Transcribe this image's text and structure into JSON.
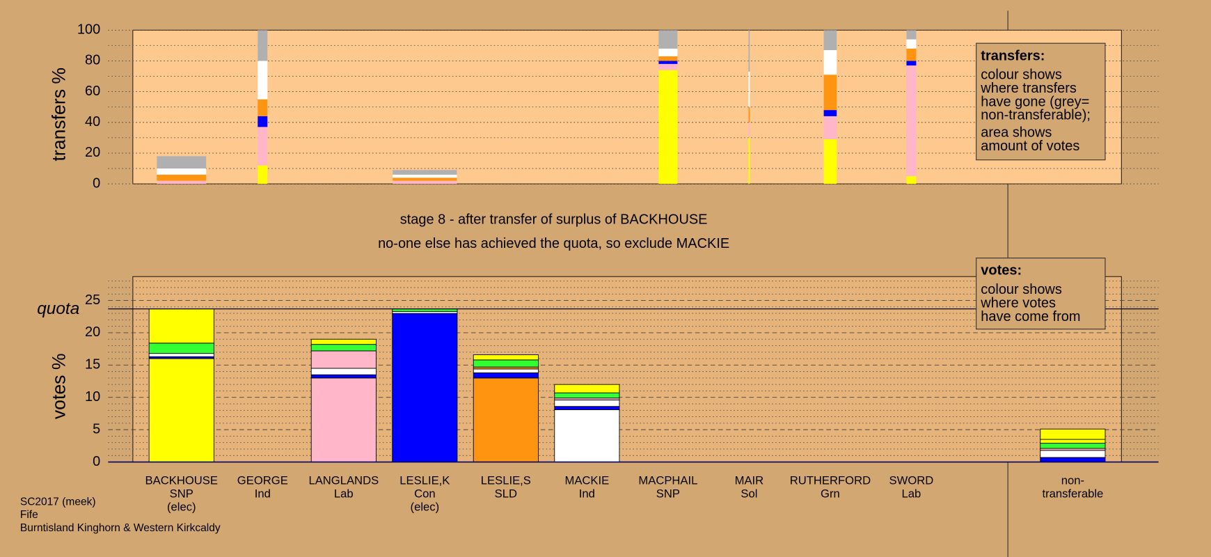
{
  "title_lines": [
    "stage 8 - after transfer of surplus of BACKHOUSE",
    "no-one else has achieved the quota, so exclude MACKIE"
  ],
  "footer": [
    "SC2017 (meek)",
    "Fife",
    "Burntisland Kinghorn & Western Kirkcaldy"
  ],
  "chart_data": [
    {
      "type": "stacked-bar",
      "ylabel": "transfers %",
      "ylim": [
        0,
        100
      ],
      "yticks": [
        0,
        20,
        40,
        60,
        80,
        100
      ],
      "minor_yticks": [
        10,
        30,
        50,
        70,
        90
      ],
      "grid": "dotted",
      "background": "#fec98e",
      "note": {
        "title": "transfers:",
        "paragraphs": [
          [
            "colour shows",
            "where transfers",
            "have gone (grey=",
            "non-transferable);"
          ],
          [
            "area shows",
            "amount of votes"
          ]
        ]
      },
      "bars": [
        {
          "width": 0.76,
          "segments": [
            {
              "color": "#ffb6c8",
              "value": 2
            },
            {
              "color": "#ff9410",
              "value": 4
            },
            {
              "color": "#ffffff",
              "value": 4
            },
            {
              "color": "#b0b0b0",
              "value": 8
            }
          ]
        },
        {
          "width": 0.15,
          "segments": [
            {
              "color": "#ffff00",
              "value": 12
            },
            {
              "color": "#ffb6c8",
              "value": 25
            },
            {
              "color": "#0000ff",
              "value": 7
            },
            {
              "color": "#ff9410",
              "value": 11
            },
            {
              "color": "#ffffff",
              "value": 25
            },
            {
              "color": "#b0b0b0",
              "value": 20
            }
          ]
        },
        null,
        {
          "width": 0.99,
          "segments": [
            {
              "color": "#ffb6c8",
              "value": 2
            },
            {
              "color": "#ff9410",
              "value": 2
            },
            {
              "color": "#ffffff",
              "value": 2
            },
            {
              "color": "#b0b0b0",
              "value": 3
            }
          ]
        },
        null,
        null,
        {
          "width": 0.29,
          "segments": [
            {
              "color": "#ffff00",
              "value": 74
            },
            {
              "color": "#ffb6c8",
              "value": 4
            },
            {
              "color": "#0000ff",
              "value": 2
            },
            {
              "color": "#ff9410",
              "value": 3
            },
            {
              "color": "#ffffff",
              "value": 5
            },
            {
              "color": "#b0b0b0",
              "value": 12
            }
          ]
        },
        {
          "width": 0.02,
          "segments": [
            {
              "color": "#ffff00",
              "value": 30
            },
            {
              "color": "#ffb6c8",
              "value": 10
            },
            {
              "color": "#ff9410",
              "value": 10
            },
            {
              "color": "#ffffff",
              "value": 23
            },
            {
              "color": "#b0b0b0",
              "value": 27
            }
          ]
        },
        {
          "width": 0.2,
          "segments": [
            {
              "color": "#ffff00",
              "value": 29
            },
            {
              "color": "#ffb6c8",
              "value": 15
            },
            {
              "color": "#0000ff",
              "value": 4
            },
            {
              "color": "#ff9410",
              "value": 23
            },
            {
              "color": "#ffffff",
              "value": 16
            },
            {
              "color": "#b0b0b0",
              "value": 13
            }
          ]
        },
        {
          "width": 0.15,
          "segments": [
            {
              "color": "#ffff00",
              "value": 5
            },
            {
              "color": "#ffb6c8",
              "value": 72
            },
            {
              "color": "#0000ff",
              "value": 3
            },
            {
              "color": "#ff9410",
              "value": 8
            },
            {
              "color": "#ffffff",
              "value": 6
            },
            {
              "color": "#b0b0b0",
              "value": 6
            }
          ]
        },
        null
      ]
    },
    {
      "type": "stacked-bar",
      "ylabel": "votes %",
      "ylim": [
        0,
        28.7
      ],
      "yticks": [
        0,
        5,
        10,
        15,
        20,
        25
      ],
      "minor_yticks": [
        1,
        2,
        3,
        4,
        6,
        7,
        8,
        9,
        11,
        12,
        13,
        14,
        16,
        17,
        18,
        19,
        21,
        22,
        23,
        24,
        26,
        27,
        28
      ],
      "grid": "dashed",
      "background": "#e6b47b",
      "quota": {
        "label": "quota",
        "value": 23.7
      },
      "note": {
        "title": "votes:",
        "paragraphs": [
          [
            "colour shows",
            "where votes",
            "have come from"
          ]
        ]
      },
      "categories": [
        [
          "BACKHOUSE",
          "SNP",
          "(elec)"
        ],
        [
          "GEORGE",
          "Ind"
        ],
        [
          "LANGLANDS",
          "Lab"
        ],
        [
          "LESLIE,K",
          "Con",
          "(elec)"
        ],
        [
          "LESLIE,S",
          "SLD"
        ],
        [
          "MACKIE",
          "Ind"
        ],
        [
          "MACPHAIL",
          "SNP"
        ],
        [
          "MAIR",
          "Sol"
        ],
        [
          "RUTHERFORD",
          "Grn"
        ],
        [
          "SWORD",
          "Lab"
        ],
        [
          "non-",
          "transferable"
        ]
      ],
      "bars": [
        {
          "segments": [
            {
              "color": "#ffff00",
              "value": 16
            },
            {
              "color": "#0000ff",
              "value": 0.3
            },
            {
              "color": "#ffffff",
              "value": 0.5
            },
            {
              "color": "#33ff33",
              "value": 1.6
            },
            {
              "color": "#ffff00",
              "value": 5.3
            }
          ]
        },
        {
          "segments": [
            {
              "color": "#0000ff",
              "value": 0
            }
          ]
        },
        {
          "segments": [
            {
              "color": "#ffb6c8",
              "value": 13
            },
            {
              "color": "#0000ff",
              "value": 0.5
            },
            {
              "color": "#ffffff",
              "value": 1
            },
            {
              "color": "#ffb6c8",
              "value": 2.7
            },
            {
              "color": "#33ff33",
              "value": 1
            },
            {
              "color": "#ffff00",
              "value": 0.8
            }
          ]
        },
        {
          "segments": [
            {
              "color": "#0000ff",
              "value": 23
            },
            {
              "color": "#ffffff",
              "value": 0.3
            },
            {
              "color": "#33ff33",
              "value": 0.4
            }
          ]
        },
        {
          "segments": [
            {
              "color": "#ff9410",
              "value": 13
            },
            {
              "color": "#0000ff",
              "value": 0.8
            },
            {
              "color": "#ffffff",
              "value": 0.6
            },
            {
              "color": "#ff9410",
              "value": 0.3
            },
            {
              "color": "#33ff33",
              "value": 1.1
            },
            {
              "color": "#ffff00",
              "value": 0.8
            }
          ]
        },
        {
          "segments": [
            {
              "color": "#ffffff",
              "value": 8.1
            },
            {
              "color": "#0000ff",
              "value": 0.5
            },
            {
              "color": "#ffffff",
              "value": 1
            },
            {
              "color": "#ffb6c8",
              "value": 0.3
            },
            {
              "color": "#33ff33",
              "value": 0.8
            },
            {
              "color": "#ffff00",
              "value": 1.3
            }
          ]
        },
        {
          "segments": [
            {
              "color": "#0000ff",
              "value": 0
            }
          ]
        },
        {
          "segments": [
            {
              "color": "#0000ff",
              "value": 0
            }
          ]
        },
        {
          "segments": [
            {
              "color": "#0000ff",
              "value": 0
            }
          ]
        },
        {
          "segments": [
            {
              "color": "#0000ff",
              "value": 0
            }
          ]
        },
        {
          "segments": [
            {
              "color": "#0000ff",
              "value": 0.7
            },
            {
              "color": "#ffffff",
              "value": 1.1
            },
            {
              "color": "#ffb6c8",
              "value": 0.3
            },
            {
              "color": "#33ff33",
              "value": 0.8
            },
            {
              "color": "#ffff00",
              "value": 0.6
            },
            {
              "color": "#ffff00",
              "value": 1.6
            }
          ]
        }
      ]
    }
  ]
}
